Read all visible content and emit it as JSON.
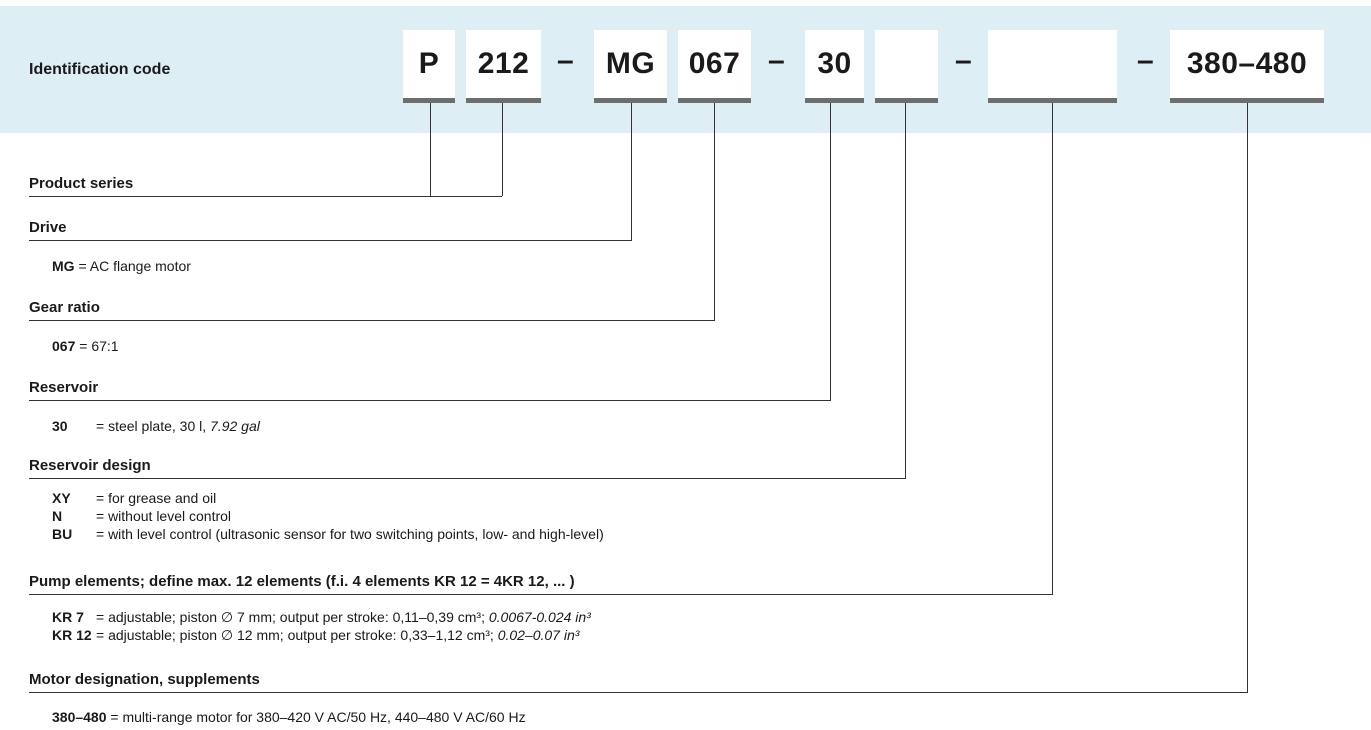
{
  "header": {
    "label": "Identification code",
    "boxes": [
      "P",
      "212",
      "MG",
      "067",
      "30",
      "",
      "",
      "380–480"
    ],
    "dash": "–"
  },
  "sections": {
    "product_series": {
      "title": "Product series"
    },
    "drive": {
      "title": "Drive",
      "items": [
        {
          "code": "MG",
          "desc": " = AC flange motor"
        }
      ]
    },
    "gear_ratio": {
      "title": "Gear ratio",
      "items": [
        {
          "code": "067",
          "desc": " = 67:1"
        }
      ]
    },
    "reservoir": {
      "title": "Reservoir",
      "items": [
        {
          "code": "30",
          "desc": "= steel plate, 30 l, ",
          "desc_italic": "7.92 gal"
        }
      ]
    },
    "reservoir_design": {
      "title": "Reservoir design",
      "items": [
        {
          "code": "XY",
          "desc": "= for grease and oil"
        },
        {
          "code": "N",
          "desc": "= without level control"
        },
        {
          "code": "BU",
          "desc": "= with level control (ultrasonic sensor for two switching points, low- and high-level)"
        }
      ]
    },
    "pump_elements": {
      "title": "Pump elements; define max. 12 elements (f.i. 4 elements KR 12 = 4KR 12, ... )",
      "items": [
        {
          "code": "KR 7",
          "desc": "= adjustable; piston ∅ 7 mm; output per stroke: 0,11–0,39 cm³; ",
          "desc_italic": "0.0067-0.024 in³"
        },
        {
          "code": "KR 12",
          "desc": "= adjustable; piston ∅ 12 mm; output per stroke: 0,33–1,12 cm³; ",
          "desc_italic": "0.02–0.07 in³"
        }
      ]
    },
    "motor": {
      "title": "Motor designation, supplements",
      "items": [
        {
          "code": "380–480",
          "desc": " = multi-range motor for 380–420 V AC/50 Hz, 440–480 V AC/60 Hz"
        }
      ]
    }
  },
  "colors": {
    "band": "#ddeef4",
    "underline": "#6e6e6e",
    "line": "#333333"
  }
}
